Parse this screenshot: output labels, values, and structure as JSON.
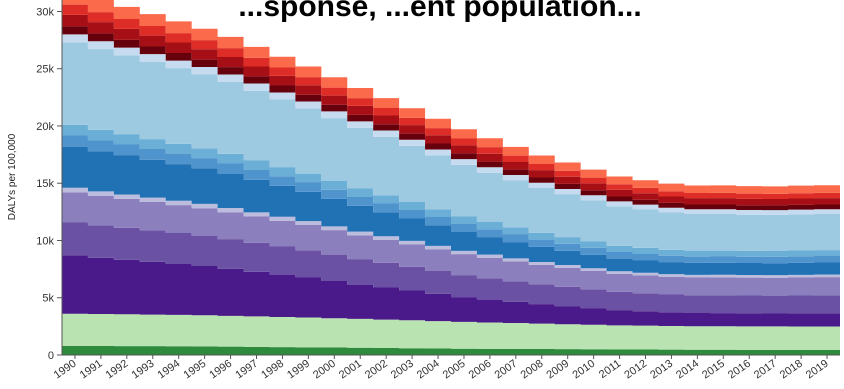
{
  "chart_title": "...sponse, ...ent population...",
  "chart_data": {
    "type": "area",
    "stacked": true,
    "title": "...sponse, ...ent population...",
    "xlabel": "",
    "ylabel": "DALYs per 100,000",
    "x": [
      "1990",
      "1991",
      "1992",
      "1993",
      "1994",
      "1995",
      "1996",
      "1997",
      "1998",
      "1999",
      "2000",
      "2001",
      "2002",
      "2003",
      "2004",
      "2005",
      "2006",
      "2007",
      "2008",
      "2009",
      "2010",
      "2011",
      "2012",
      "2013",
      "2014",
      "2015",
      "2016",
      "2017",
      "2018",
      "2019"
    ],
    "ylim": [
      0,
      31000
    ],
    "yticks": [
      0,
      5000,
      10000,
      15000,
      20000,
      25000,
      30000
    ],
    "ytick_labels": [
      "0",
      "5k",
      "10k",
      "15k",
      "20k",
      "25k",
      "30k"
    ],
    "grid": false,
    "legend": "none",
    "series": [
      {
        "color": "#2e8b3e",
        "values": [
          800,
          790,
          780,
          770,
          760,
          750,
          730,
          710,
          690,
          670,
          650,
          630,
          610,
          590,
          570,
          550,
          540,
          530,
          520,
          510,
          500,
          490,
          480,
          470,
          460,
          455,
          450,
          445,
          440,
          440
        ]
      },
      {
        "color": "#b9e3b0",
        "values": [
          2800,
          2790,
          2780,
          2760,
          2740,
          2720,
          2690,
          2660,
          2630,
          2600,
          2560,
          2520,
          2480,
          2440,
          2390,
          2340,
          2300,
          2260,
          2220,
          2180,
          2140,
          2100,
          2080,
          2060,
          2050,
          2050,
          2050,
          2050,
          2050,
          2050
        ]
      },
      {
        "color": "#4a1a8a",
        "values": [
          5100,
          4900,
          4750,
          4600,
          4450,
          4300,
          4100,
          3900,
          3700,
          3500,
          3250,
          3000,
          2800,
          2600,
          2380,
          2160,
          2000,
          1850,
          1700,
          1580,
          1450,
          1330,
          1260,
          1200,
          1160,
          1150,
          1140,
          1130,
          1140,
          1150
        ]
      },
      {
        "color": "#6a51a3",
        "values": [
          2900,
          2850,
          2800,
          2750,
          2700,
          2650,
          2600,
          2520,
          2450,
          2380,
          2300,
          2220,
          2150,
          2080,
          2000,
          1920,
          1860,
          1800,
          1740,
          1690,
          1640,
          1590,
          1570,
          1550,
          1550,
          1560,
          1560,
          1560,
          1570,
          1580
        ]
      },
      {
        "color": "#8c7fbd",
        "values": [
          2600,
          2560,
          2520,
          2480,
          2440,
          2400,
          2350,
          2300,
          2250,
          2200,
          2140,
          2080,
          2020,
          1960,
          1900,
          1840,
          1790,
          1740,
          1690,
          1650,
          1610,
          1570,
          1560,
          1550,
          1550,
          1560,
          1560,
          1560,
          1570,
          1580
        ]
      },
      {
        "color": "#bcbddc",
        "values": [
          400,
          395,
          390,
          385,
          380,
          375,
          370,
          360,
          350,
          340,
          330,
          320,
          310,
          300,
          290,
          280,
          270,
          260,
          250,
          245,
          240,
          235,
          232,
          230,
          230,
          230,
          230,
          230,
          230,
          230
        ]
      },
      {
        "color": "#2171b5",
        "values": [
          3600,
          3500,
          3400,
          3300,
          3200,
          3100,
          3000,
          2850,
          2700,
          2550,
          2400,
          2250,
          2100,
          1950,
          1800,
          1650,
          1530,
          1420,
          1320,
          1240,
          1170,
          1100,
          1070,
          1050,
          1040,
          1040,
          1040,
          1040,
          1050,
          1050
        ]
      },
      {
        "color": "#4f94cd",
        "values": [
          1000,
          980,
          960,
          940,
          920,
          900,
          880,
          860,
          840,
          820,
          800,
          780,
          760,
          740,
          720,
          700,
          680,
          660,
          640,
          620,
          600,
          580,
          570,
          560,
          555,
          555,
          555,
          555,
          560,
          560
        ]
      },
      {
        "color": "#6baed6",
        "values": [
          900,
          890,
          880,
          870,
          860,
          850,
          840,
          820,
          800,
          780,
          760,
          740,
          720,
          700,
          680,
          660,
          640,
          620,
          600,
          580,
          560,
          540,
          530,
          520,
          515,
          515,
          515,
          515,
          520,
          520
        ]
      },
      {
        "color": "#9ecae1",
        "values": [
          7200,
          7050,
          6900,
          6750,
          6600,
          6450,
          6300,
          6100,
          5900,
          5700,
          5500,
          5300,
          5100,
          4900,
          4700,
          4500,
          4300,
          4100,
          3900,
          3750,
          3600,
          3450,
          3350,
          3250,
          3200,
          3200,
          3150,
          3150,
          3150,
          3150
        ]
      },
      {
        "color": "#c6dbef",
        "values": [
          700,
          690,
          680,
          670,
          660,
          650,
          640,
          625,
          610,
          595,
          580,
          565,
          550,
          535,
          520,
          505,
          490,
          475,
          460,
          450,
          440,
          430,
          425,
          420,
          415,
          415,
          415,
          415,
          415,
          415
        ]
      },
      {
        "color": "#67000d",
        "values": [
          700,
          690,
          680,
          670,
          660,
          650,
          640,
          625,
          610,
          595,
          580,
          565,
          550,
          535,
          520,
          505,
          490,
          475,
          460,
          450,
          440,
          430,
          425,
          420,
          415,
          415,
          415,
          415,
          415,
          415
        ]
      },
      {
        "color": "#a50f15",
        "values": [
          1000,
          980,
          960,
          940,
          920,
          900,
          880,
          860,
          840,
          820,
          800,
          780,
          760,
          740,
          720,
          700,
          680,
          660,
          640,
          620,
          600,
          580,
          570,
          560,
          555,
          555,
          555,
          555,
          560,
          560
        ]
      },
      {
        "color": "#de2d26",
        "values": [
          900,
          880,
          860,
          840,
          820,
          800,
          780,
          760,
          740,
          720,
          700,
          680,
          660,
          640,
          620,
          600,
          580,
          560,
          540,
          520,
          500,
          480,
          470,
          460,
          455,
          455,
          455,
          455,
          460,
          460
        ]
      },
      {
        "color": "#fb6a4a",
        "values": [
          1100,
          1080,
          1060,
          1040,
          1020,
          1000,
          980,
          960,
          940,
          920,
          900,
          880,
          860,
          840,
          820,
          800,
          780,
          760,
          740,
          720,
          700,
          680,
          670,
          660,
          655,
          655,
          655,
          655,
          660,
          660
        ]
      }
    ]
  }
}
